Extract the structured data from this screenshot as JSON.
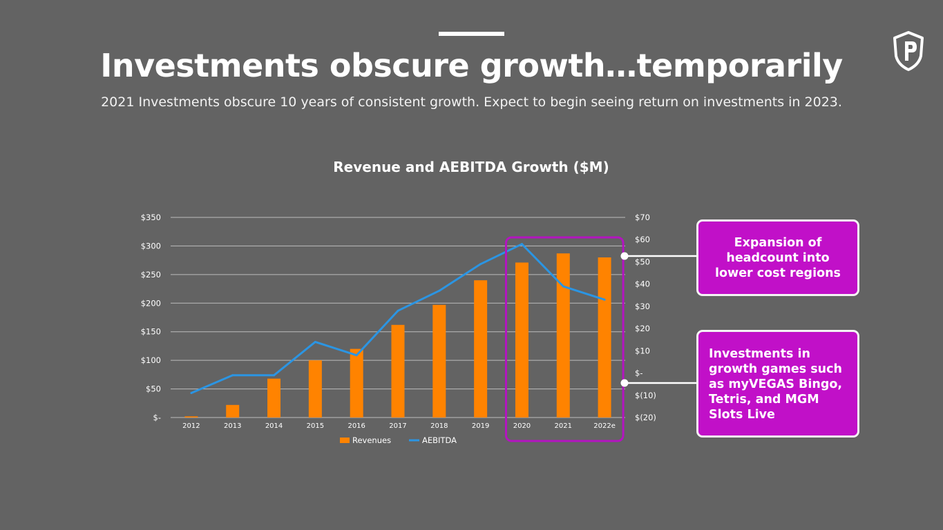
{
  "slide": {
    "title": "Investments obscure growth…temporarily",
    "subtitle": "2021 Investments obscure 10 years of consistent growth. Expect to begin seeing return on investments in 2023.",
    "logo_icon": "shield-p-logo-icon"
  },
  "callouts": {
    "top": "Expansion of headcount into lower cost regions",
    "bottom": "Investments in growth games such as myVEGAS Bingo, Tetris, and MGM Slots Live"
  },
  "colors": {
    "background": "#636363",
    "bar": "#ff8300",
    "line": "#2b95e3",
    "highlight": "#b414c0",
    "callout_bg": "#c110c8"
  },
  "chart_data": {
    "type": "bar",
    "title": "Revenue and AEBITDA Growth ($M)",
    "categories": [
      "2012",
      "2013",
      "2014",
      "2015",
      "2016",
      "2017",
      "2018",
      "2019",
      "2020",
      "2021",
      "2022e"
    ],
    "series": [
      {
        "name": "Revenues",
        "type": "bar",
        "axis": "left",
        "values": [
          2,
          22,
          68,
          100,
          120,
          162,
          197,
          240,
          271,
          287,
          280
        ]
      },
      {
        "name": "AEBITDA",
        "type": "line",
        "axis": "right",
        "values": [
          -9,
          -1,
          -1,
          14,
          8,
          28,
          37,
          49,
          58,
          39,
          33
        ]
      }
    ],
    "left_axis": {
      "ylim": [
        0,
        350
      ],
      "ticks": [
        0,
        50,
        100,
        150,
        200,
        250,
        300,
        350
      ],
      "tick_labels": [
        "$-",
        "$50",
        "$100",
        "$150",
        "$200",
        "$250",
        "$300",
        "$350"
      ]
    },
    "right_axis": {
      "ylim": [
        -20,
        70
      ],
      "ticks": [
        -20,
        -10,
        0,
        10,
        20,
        30,
        40,
        50,
        60,
        70
      ],
      "tick_labels": [
        "$(20)",
        "$(10)",
        "$-",
        "$10",
        "$20",
        "$30",
        "$40",
        "$50",
        "$60",
        "$70"
      ]
    },
    "highlight_categories": [
      "2020",
      "2021",
      "2022e"
    ],
    "grid": true,
    "legend_position": "bottom"
  }
}
